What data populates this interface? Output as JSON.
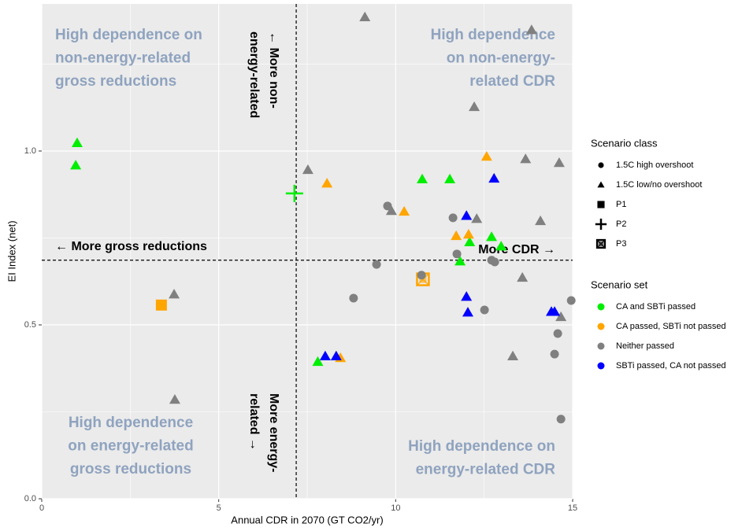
{
  "chart_data": {
    "type": "scatter",
    "x_label": "Annual CDR in 2070 (GT CO2/yr)",
    "y_label": "EI Index (net)",
    "xlim": [
      0,
      15
    ],
    "ylim": [
      0,
      1.423
    ],
    "xticks": [
      0,
      5,
      10,
      15
    ],
    "yticks": [
      {
        "value": 0,
        "label": "0.0"
      },
      0.5,
      {
        "value": 1,
        "label": "1.0"
      }
    ],
    "grid": true,
    "reference_lines": {
      "x": 7.19,
      "y": 0.686
    },
    "quadrant_labels": [
      {
        "lines": [
          "High dependence on",
          "non-energy-related",
          "gross reductions"
        ]
      },
      {
        "lines": [
          "High dependence",
          "on non-energy-",
          "related CDR"
        ]
      },
      {
        "lines": [
          "High dependence",
          "on energy-related",
          "gross reductions"
        ]
      },
      {
        "lines": [
          "High dependence on",
          "energy-related CDR"
        ]
      }
    ],
    "arrow_labels": {
      "up": [
        "← More non-",
        "energy-related"
      ],
      "down": [
        "More energy-",
        "related →"
      ],
      "left": "← More gross reductions",
      "right": "More CDR →"
    },
    "shape_legend": {
      "title": "Scenario class",
      "items": [
        {
          "name": "1.5C high overshoot",
          "shape": "circle"
        },
        {
          "name": "1.5C low/no overshoot",
          "shape": "triangle"
        },
        {
          "name": "P1",
          "shape": "square"
        },
        {
          "name": "P2",
          "shape": "plus"
        },
        {
          "name": "P3",
          "shape": "boxcross"
        }
      ]
    },
    "color_legend_title": "Scenario set",
    "series": [
      {
        "name": "CA and SBTi passed",
        "color": "#00ee00",
        "x": [
          1.0,
          0.96,
          7.14,
          10.75,
          11.53,
          12.71,
          12.09,
          11.82,
          12.98,
          7.8
        ],
        "values": [
          1.023,
          0.959,
          0.878,
          0.919,
          0.919,
          0.753,
          0.738,
          0.683,
          0.726,
          0.394
        ],
        "shapes": [
          "triangle",
          "triangle",
          "plus",
          "triangle",
          "triangle",
          "triangle",
          "triangle",
          "triangle",
          "triangle",
          "triangle"
        ]
      },
      {
        "name": "CA passed, SBTi not passed",
        "color": "#ffa500",
        "x": [
          3.38,
          8.06,
          10.24,
          11.71,
          12.06,
          12.57,
          8.44,
          10.77
        ],
        "values": [
          0.557,
          0.907,
          0.826,
          0.756,
          0.76,
          0.984,
          0.405,
          0.631
        ],
        "shapes": [
          "square",
          "triangle",
          "triangle",
          "triangle",
          "triangle",
          "triangle",
          "triangle",
          "boxcross"
        ]
      },
      {
        "name": "Neither passed",
        "color": "#808080",
        "x": [
          9.13,
          13.84,
          12.22,
          7.52,
          13.67,
          14.62,
          12.29,
          14.09,
          9.88,
          13.58,
          13.31,
          14.67,
          3.74,
          3.76,
          9.77,
          11.62,
          11.73,
          9.46,
          8.81,
          10.73,
          12.51,
          12.71,
          12.8,
          14.96,
          14.58,
          14.49,
          14.67
        ],
        "values": [
          1.385,
          1.348,
          1.127,
          0.946,
          0.977,
          0.966,
          0.805,
          0.799,
          0.828,
          0.636,
          0.41,
          0.523,
          0.588,
          0.285,
          0.842,
          0.808,
          0.704,
          0.674,
          0.577,
          0.643,
          0.543,
          0.686,
          0.681,
          0.57,
          0.475,
          0.416,
          0.229
        ],
        "shapes": [
          "triangle",
          "triangle",
          "triangle",
          "triangle",
          "triangle",
          "triangle",
          "triangle",
          "triangle",
          "triangle",
          "triangle",
          "triangle",
          "triangle",
          "triangle",
          "triangle",
          "circle",
          "circle",
          "circle",
          "circle",
          "circle",
          "circle",
          "circle",
          "circle",
          "circle",
          "circle",
          "circle",
          "circle",
          "circle"
        ]
      },
      {
        "name": "SBTi passed, CA not passed",
        "color": "#0000ff",
        "x": [
          12.78,
          12.0,
          12.0,
          12.04,
          8.01,
          8.32,
          14.4,
          14.49
        ],
        "values": [
          0.921,
          0.814,
          0.581,
          0.536,
          0.41,
          0.41,
          0.538,
          0.538
        ],
        "shapes": [
          "triangle",
          "triangle",
          "triangle",
          "triangle",
          "triangle",
          "triangle",
          "triangle",
          "triangle"
        ]
      }
    ]
  }
}
